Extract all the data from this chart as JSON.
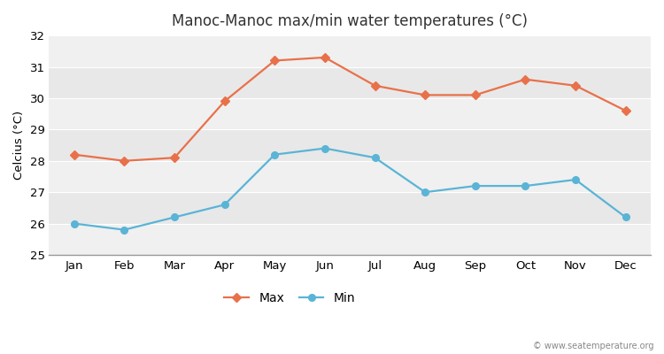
{
  "title": "Manoc-Manoc max/min water temperatures (°C)",
  "ylabel": "Celcius (°C)",
  "months": [
    "Jan",
    "Feb",
    "Mar",
    "Apr",
    "May",
    "Jun",
    "Jul",
    "Aug",
    "Sep",
    "Oct",
    "Nov",
    "Dec"
  ],
  "max_values": [
    28.2,
    28.0,
    28.1,
    29.9,
    31.2,
    31.3,
    30.4,
    30.1,
    30.1,
    30.6,
    30.4,
    29.6
  ],
  "min_values": [
    26.0,
    25.8,
    26.2,
    26.6,
    28.2,
    28.4,
    28.1,
    27.0,
    27.2,
    27.2,
    27.4,
    26.2
  ],
  "max_color": "#e8714a",
  "min_color": "#5ab4d6",
  "ylim": [
    25,
    32
  ],
  "yticks": [
    25,
    26,
    27,
    28,
    29,
    30,
    31,
    32
  ],
  "bg_color": "#ffffff",
  "band_colors": [
    "#f0f0f0",
    "#e8e8e8"
  ],
  "watermark": "© www.seatemperature.org",
  "legend_max": "Max",
  "legend_min": "Min"
}
